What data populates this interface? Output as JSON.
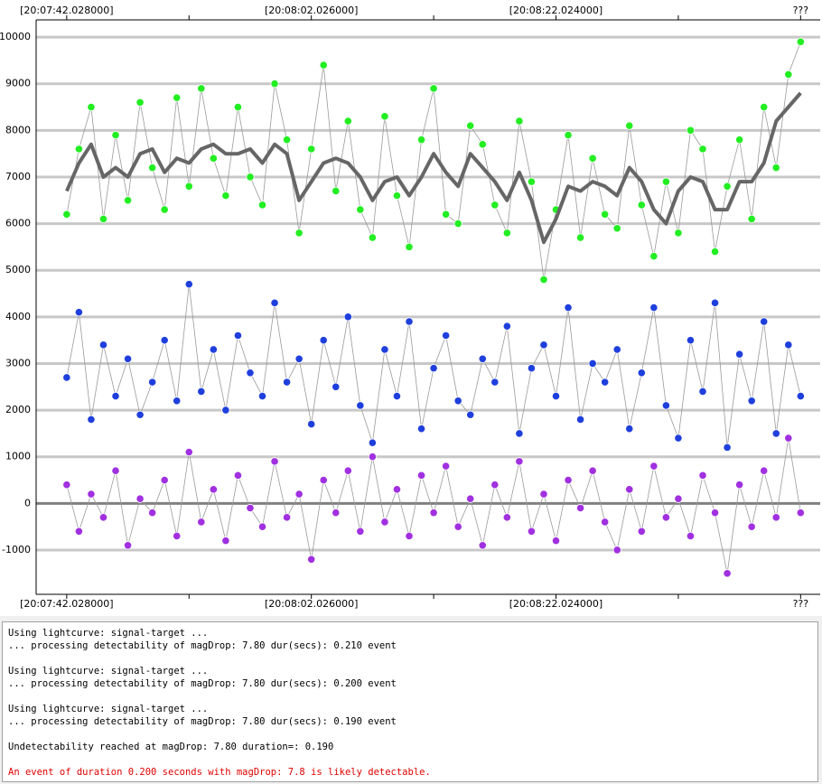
{
  "chart_data": {
    "type": "scatter",
    "x": [
      0,
      1,
      2,
      3,
      4,
      5,
      6,
      7,
      8,
      9,
      10,
      11,
      12,
      13,
      14,
      15,
      16,
      17,
      18,
      19,
      20,
      21,
      22,
      23,
      24,
      25,
      26,
      27,
      28,
      29,
      30,
      31,
      32,
      33,
      34,
      35,
      36,
      37,
      38,
      39,
      40,
      41,
      42,
      43,
      44,
      45,
      46,
      47,
      48,
      49,
      50,
      51,
      52,
      53,
      54,
      55,
      56,
      57,
      58,
      59,
      60
    ],
    "series": [
      {
        "mode": "markers",
        "color": "#22ee22",
        "values": [
          6200,
          7600,
          8500,
          6100,
          7900,
          6500,
          8600,
          7200,
          6300,
          8700,
          6800,
          8900,
          7400,
          6600,
          8500,
          7000,
          6400,
          9000,
          7800,
          5800,
          7600,
          9400,
          6700,
          8200,
          6300,
          5700,
          8300,
          6600,
          5500,
          7800,
          8900,
          6200,
          6000,
          8100,
          7700,
          6400,
          5800,
          8200,
          6900,
          4800,
          6300,
          7900,
          5700,
          7400,
          6200,
          5900,
          8100,
          6400,
          5300,
          6900,
          5800,
          8000,
          7600,
          5400,
          6800,
          7800,
          6100,
          8500,
          7200,
          9200,
          9900
        ]
      },
      {
        "mode": "markers",
        "color": "#1f3fdd",
        "values": [
          2700,
          4100,
          1800,
          3400,
          2300,
          3100,
          1900,
          2600,
          3500,
          2200,
          4700,
          2400,
          3300,
          2000,
          3600,
          2800,
          2300,
          4300,
          2600,
          3100,
          1700,
          3500,
          2500,
          4000,
          2100,
          1300,
          3300,
          2300,
          3900,
          1600,
          2900,
          3600,
          2200,
          1900,
          3100,
          2600,
          3800,
          1500,
          2900,
          3400,
          2300,
          4200,
          1800,
          3000,
          2600,
          3300,
          1600,
          2800,
          4200,
          2100,
          1400,
          3500,
          2400,
          4300,
          1200,
          3200,
          2200,
          3900,
          1500,
          3400,
          2300
        ]
      },
      {
        "mode": "markers",
        "color": "#a030e0",
        "values": [
          400,
          -600,
          200,
          -300,
          700,
          -900,
          100,
          -200,
          500,
          -700,
          1100,
          -400,
          300,
          -800,
          600,
          -100,
          -500,
          900,
          -300,
          200,
          -1200,
          500,
          -200,
          700,
          -600,
          1000,
          -400,
          300,
          -700,
          600,
          -200,
          800,
          -500,
          100,
          -900,
          400,
          -300,
          900,
          -600,
          200,
          -800,
          500,
          -100,
          700,
          -400,
          -1000,
          300,
          -600,
          800,
          -300,
          100,
          -700,
          600,
          -200,
          -1500,
          400,
          -500,
          700,
          -300,
          1400,
          -200
        ]
      },
      {
        "mode": "line",
        "color": "#666666",
        "values": [
          6700,
          7300,
          7700,
          7000,
          7200,
          7000,
          7500,
          7600,
          7100,
          7400,
          7300,
          7600,
          7700,
          7500,
          7500,
          7600,
          7300,
          7700,
          7500,
          6500,
          6900,
          7300,
          7400,
          7300,
          7000,
          6500,
          6900,
          7000,
          6600,
          7000,
          7500,
          7100,
          6800,
          7500,
          7200,
          6900,
          6500,
          7100,
          6500,
          5600,
          6100,
          6800,
          6700,
          6900,
          6800,
          6600,
          7200,
          6900,
          6300,
          6000,
          6700,
          7000,
          6900,
          6300,
          6300,
          6900,
          6900,
          7300,
          8200,
          8500,
          8800
        ]
      }
    ],
    "xlim": [
      -2.5,
      61.6
    ],
    "xticks": [
      {
        "value": 0,
        "label": "[20:07:42.028000]"
      },
      {
        "value": 20,
        "label": "[20:08:02.026000]"
      },
      {
        "value": 40,
        "label": "[20:08:22.024000]"
      },
      {
        "value": 60,
        "label": "???"
      }
    ],
    "xminorticks": [
      10,
      30,
      50
    ],
    "ylim": [
      -1950,
      10370
    ],
    "yticks": [
      10000,
      9000,
      8000,
      7000,
      6000,
      5000,
      4000,
      3000,
      2000,
      1000,
      0,
      -1000
    ],
    "grid": true
  },
  "log": {
    "entries": [
      [
        "Using lightcurve: signal-target ...",
        "... processing detectability of magDrop: 7.80 dur(secs): 0.210 event"
      ],
      [
        "Using lightcurve: signal-target ...",
        "... processing detectability of magDrop: 7.80 dur(secs): 0.200 event"
      ],
      [
        "Using lightcurve: signal-target ...",
        "... processing detectability of magDrop: 7.80 dur(secs): 0.190 event"
      ],
      [
        "Undetectability reached at magDrop: 7.80 duration=: 0.190"
      ]
    ],
    "alert": "An event of duration 0.200 seconds with magDrop: 7.8 is likely detectable."
  }
}
